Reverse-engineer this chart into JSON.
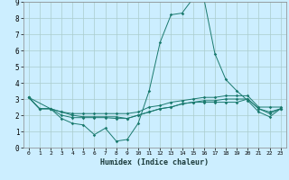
{
  "xlabel": "Humidex (Indice chaleur)",
  "background_color": "#cceeff",
  "line_color": "#1a7a6e",
  "grid_color": "#aacccc",
  "xlim": [
    -0.5,
    23.5
  ],
  "ylim": [
    0,
    9
  ],
  "xticks": [
    0,
    1,
    2,
    3,
    4,
    5,
    6,
    7,
    8,
    9,
    10,
    11,
    12,
    13,
    14,
    15,
    16,
    17,
    18,
    19,
    20,
    21,
    22,
    23
  ],
  "yticks": [
    0,
    1,
    2,
    3,
    4,
    5,
    6,
    7,
    8,
    9
  ],
  "lines": [
    {
      "x": [
        0,
        1,
        2,
        3,
        4,
        5,
        6,
        7,
        8,
        9,
        10,
        11,
        12,
        13,
        14,
        15,
        16,
        17,
        18,
        19,
        20,
        21,
        22,
        23
      ],
      "y": [
        3.1,
        2.4,
        2.4,
        1.8,
        1.5,
        1.4,
        0.8,
        1.2,
        0.4,
        0.5,
        1.5,
        3.5,
        6.5,
        8.2,
        8.3,
        9.2,
        9.2,
        5.8,
        4.2,
        3.5,
        2.9,
        2.2,
        1.9,
        2.4
      ]
    },
    {
      "x": [
        0,
        1,
        2,
        3,
        4,
        5,
        6,
        7,
        8,
        9,
        10,
        11,
        12,
        13,
        14,
        15,
        16,
        17,
        18,
        19,
        20,
        21,
        22,
        23
      ],
      "y": [
        3.1,
        2.4,
        2.4,
        2.2,
        2.1,
        2.1,
        2.1,
        2.1,
        2.1,
        2.1,
        2.2,
        2.5,
        2.6,
        2.8,
        2.9,
        3.0,
        3.1,
        3.1,
        3.2,
        3.2,
        3.2,
        2.5,
        2.5,
        2.5
      ]
    },
    {
      "x": [
        0,
        1,
        2,
        3,
        4,
        5,
        6,
        7,
        8,
        9,
        10,
        11,
        12,
        13,
        14,
        15,
        16,
        17,
        18,
        19,
        20,
        21,
        22,
        23
      ],
      "y": [
        3.1,
        2.4,
        2.4,
        2.0,
        1.85,
        1.85,
        1.85,
        1.85,
        1.8,
        1.8,
        2.0,
        2.2,
        2.4,
        2.5,
        2.7,
        2.8,
        2.8,
        2.8,
        2.8,
        2.8,
        3.0,
        2.4,
        2.2,
        2.4
      ]
    },
    {
      "x": [
        0,
        2,
        3,
        4,
        5,
        6,
        7,
        8,
        9,
        10,
        11,
        12,
        13,
        14,
        15,
        16,
        17,
        18,
        19,
        20,
        21,
        22,
        23
      ],
      "y": [
        3.1,
        2.4,
        2.2,
        2.0,
        1.9,
        1.9,
        1.9,
        1.9,
        1.8,
        2.0,
        2.2,
        2.4,
        2.5,
        2.7,
        2.8,
        2.9,
        2.9,
        3.0,
        3.0,
        3.0,
        2.4,
        2.1,
        2.4
      ]
    }
  ]
}
